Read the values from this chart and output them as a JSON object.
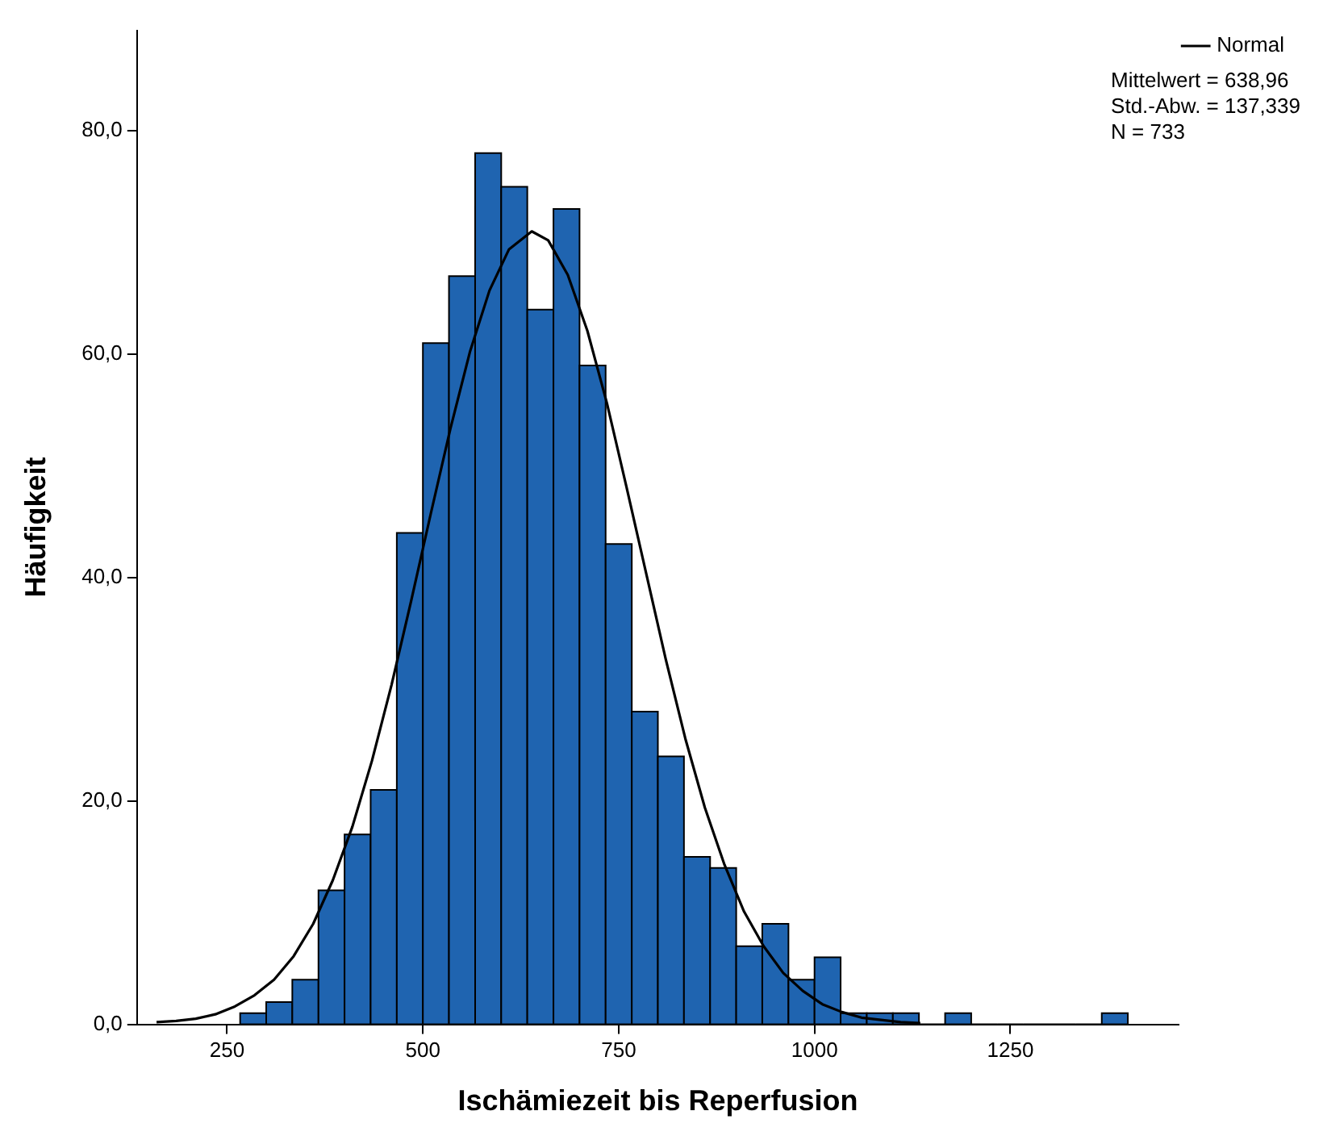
{
  "chart_data": {
    "type": "histogram",
    "xlabel": "Ischämiezeit bis Reperfusion",
    "ylabel": "Häufigkeit",
    "bins": [
      266.7,
      300,
      333.3,
      366.7,
      400,
      433.3,
      466.7,
      500,
      533.3,
      566.7,
      600,
      633.3,
      666.7,
      700,
      733.3,
      766.7,
      800,
      833.3,
      866.7,
      900,
      933.3,
      966.7,
      1000,
      1033.3,
      1066.7,
      1100,
      1133.3,
      1166.7,
      1200,
      1233.3,
      1266.7,
      1300,
      1333.3,
      1366.7,
      1400
    ],
    "values": [
      1,
      2,
      4,
      12,
      17,
      21,
      44,
      61,
      67,
      78,
      75,
      64,
      73,
      59,
      43,
      28,
      24,
      15,
      14,
      7,
      9,
      4,
      6,
      1,
      1,
      1,
      0,
      1,
      0,
      0,
      0,
      0,
      0,
      1
    ],
    "color": "#1f64b0",
    "series": [
      {
        "name": "Normal",
        "type": "line",
        "color": "#000000",
        "x": [
          160,
          185,
          210,
          235,
          260,
          285,
          310,
          335,
          360,
          385,
          410,
          435,
          460,
          485,
          510,
          535,
          560,
          585,
          610,
          639,
          660,
          685,
          710,
          735,
          760,
          785,
          810,
          835,
          860,
          885,
          910,
          935,
          960,
          985,
          1010,
          1035,
          1060,
          1085,
          1110,
          1135
        ],
        "values": [
          0.2,
          0.3,
          0.5,
          0.9,
          1.6,
          2.6,
          4.0,
          6.1,
          9.0,
          12.9,
          17.7,
          23.6,
          30.4,
          37.9,
          45.7,
          53.3,
          60.2,
          65.7,
          69.4,
          71.0,
          70.2,
          67.1,
          62.1,
          55.6,
          48.1,
          40.4,
          32.7,
          25.6,
          19.4,
          14.3,
          10.1,
          7.0,
          4.6,
          3.0,
          1.8,
          1.1,
          0.6,
          0.4,
          0.2,
          0.1
        ]
      }
    ],
    "xlim": [
      135,
      1465
    ],
    "xticks": [
      250,
      500,
      750,
      1000,
      1250
    ],
    "ylim": [
      0,
      89
    ],
    "yticks": [
      {
        "value": 0,
        "label": "0,0"
      },
      {
        "value": 20,
        "label": "20,0"
      },
      {
        "value": 40,
        "label": "40,0"
      },
      {
        "value": 60,
        "label": "60,0"
      },
      {
        "value": 80,
        "label": "80,0"
      }
    ],
    "annotations": [
      "Mittelwert = 638,96",
      "Std.-Abw. = 137,339",
      "N = 733"
    ],
    "legend": "top right",
    "marker": "none",
    "line_style": "solid",
    "grid": false
  }
}
